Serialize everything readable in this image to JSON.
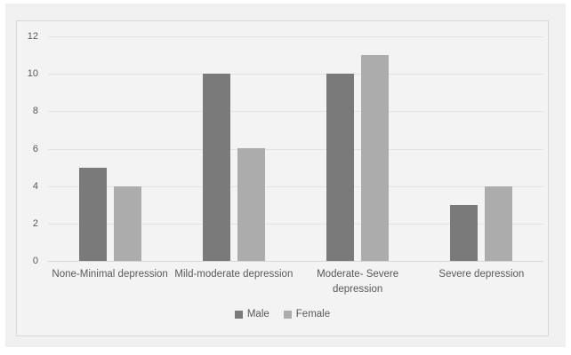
{
  "chart_data": {
    "type": "bar",
    "title": "",
    "xlabel": "",
    "ylabel": "",
    "categories": [
      "None-Minimal depression",
      "Mild-moderate depression",
      "Moderate- Severe depression",
      "Severe depression"
    ],
    "series": [
      {
        "name": "Male",
        "color": "#7a7a7a",
        "values": [
          5,
          10,
          10,
          3
        ]
      },
      {
        "name": "Female",
        "color": "#acacac",
        "values": [
          4,
          6,
          11,
          4
        ]
      }
    ],
    "ylim": [
      0,
      12
    ],
    "yticks": [
      0,
      2,
      4,
      6,
      8,
      10,
      12
    ],
    "grid": true,
    "legend_position": "bottom"
  },
  "colors": {
    "figure_background": "#f0f0f0",
    "chart_background": "#f3f3f3",
    "chart_border": "#d8d8d8",
    "gridline": "#e2e2e2",
    "axis_text": "#595959"
  }
}
